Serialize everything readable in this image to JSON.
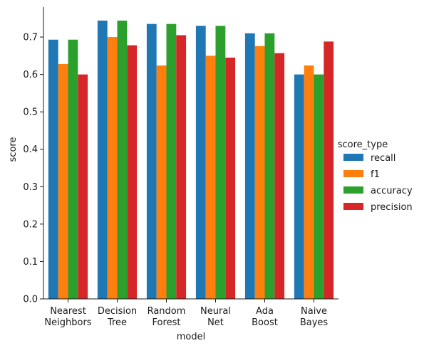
{
  "chart_data": {
    "type": "bar",
    "title": "",
    "xlabel": "model",
    "ylabel": "score",
    "ylim": [
      0,
      0.78
    ],
    "yticks": [
      0.0,
      0.1,
      0.2,
      0.3,
      0.4,
      0.5,
      0.6,
      0.7
    ],
    "ytick_labels": [
      "0.0",
      "0.1",
      "0.2",
      "0.3",
      "0.4",
      "0.5",
      "0.6",
      "0.7"
    ],
    "categories": [
      [
        "Nearest",
        "Neighbors"
      ],
      [
        "Decision",
        "Tree"
      ],
      [
        "Random",
        "Forest"
      ],
      [
        "Neural",
        "Net"
      ],
      [
        "Ada",
        "Boost"
      ],
      [
        "Naive",
        "Bayes"
      ]
    ],
    "legend": {
      "title": "score_type",
      "placement": "right"
    },
    "grid": false,
    "series": [
      {
        "name": "recall",
        "color": "#1f77b4",
        "values": [
          0.693,
          0.744,
          0.735,
          0.73,
          0.71,
          0.6
        ]
      },
      {
        "name": "f1",
        "color": "#ff7f0e",
        "values": [
          0.628,
          0.7,
          0.624,
          0.65,
          0.676,
          0.624
        ]
      },
      {
        "name": "accuracy",
        "color": "#2ca02c",
        "values": [
          0.693,
          0.744,
          0.735,
          0.73,
          0.71,
          0.6
        ]
      },
      {
        "name": "precision",
        "color": "#d62728",
        "values": [
          0.6,
          0.678,
          0.705,
          0.645,
          0.657,
          0.688
        ]
      }
    ]
  }
}
